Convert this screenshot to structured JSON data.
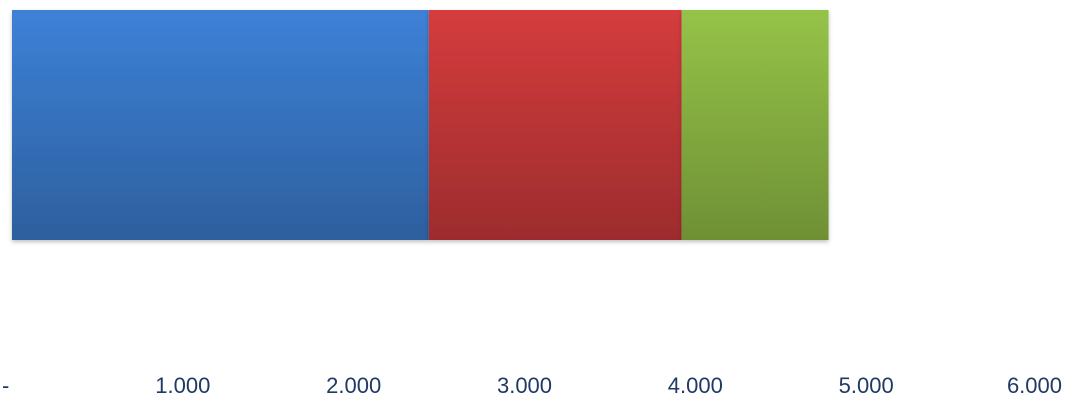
{
  "chart_data": {
    "type": "bar",
    "orientation": "horizontal",
    "stacked": true,
    "categories": [
      ""
    ],
    "series": [
      {
        "values": [
          2440
        ],
        "color": "#3a7acb"
      },
      {
        "values": [
          1480
        ],
        "color": "#c9393a"
      },
      {
        "values": [
          860
        ],
        "color": "#8db844"
      }
    ],
    "xlim": [
      0,
      6000
    ],
    "xticks": [
      0,
      1000,
      2000,
      3000,
      4000,
      5000,
      6000
    ],
    "tick_labels": [
      "-",
      "1.000",
      "2.000",
      "3.000",
      "4.000",
      "5.000",
      "6.000"
    ],
    "grid": false,
    "legend": "none",
    "title": "",
    "xlabel": "",
    "ylabel": ""
  }
}
